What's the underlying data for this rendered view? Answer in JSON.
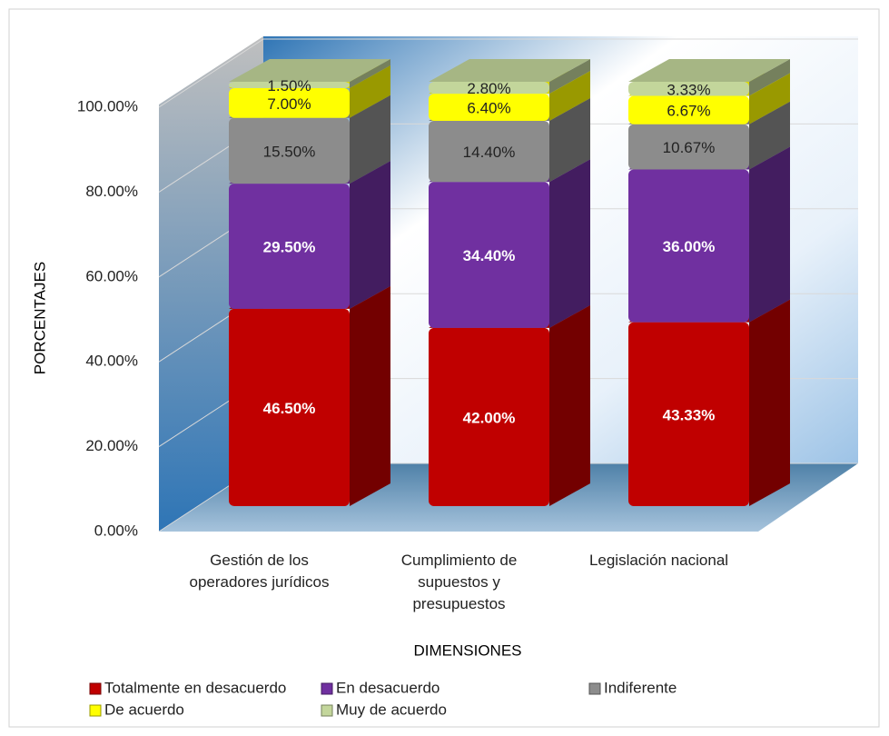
{
  "chart_data": {
    "type": "bar3d_stacked",
    "xlabel": "DIMENSIONES",
    "ylabel": "PORCENTAJES",
    "categories": [
      "Gestión de los operadores jurídicos",
      "Cumplimiento de supuestos y presupuestos",
      "Legislación nacional"
    ],
    "series": [
      {
        "name": "Totalmente en desacuerdo",
        "color": "#c00000",
        "values": [
          46.5,
          42,
          43.33
        ],
        "value_labels": [
          "46.50%",
          "42.00%",
          "43.33%"
        ]
      },
      {
        "name": "En desacuerdo",
        "color": "#7030a0",
        "values": [
          29.5,
          34.4,
          36
        ],
        "value_labels": [
          "29.50%",
          "34.40%",
          "36.00%"
        ]
      },
      {
        "name": "Indiferente",
        "color": "#8c8c8c",
        "values": [
          15.5,
          14.4,
          10.67
        ],
        "value_labels": [
          "15.50%",
          "14.40%",
          "10.67%"
        ]
      },
      {
        "name": "De acuerdo",
        "color": "#ffff00",
        "values": [
          7,
          6.4,
          6.67
        ],
        "value_labels": [
          "7.00%",
          "6.40%",
          "6.67%"
        ]
      },
      {
        "name": "Muy de acuerdo",
        "color": "#c3d69b",
        "values": [
          1.5,
          2.8,
          3.33
        ],
        "value_labels": [
          "1.50%",
          "2.80%",
          "3.33%"
        ]
      }
    ],
    "ylim": [
      0,
      100
    ],
    "yticks": [
      {
        "value": 0,
        "label": "0.00%"
      },
      {
        "value": 20,
        "label": "20.00%"
      },
      {
        "value": 40,
        "label": "40.00%"
      },
      {
        "value": 60,
        "label": "60.00%"
      },
      {
        "value": 80,
        "label": "80.00%"
      },
      {
        "value": 100,
        "label": "100.00%"
      }
    ],
    "grid": true,
    "stacked": true,
    "legend": "bottom"
  }
}
